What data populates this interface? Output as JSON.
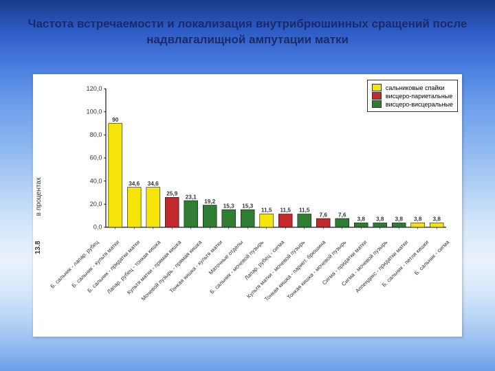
{
  "title": "Частота встречаемости и локализация внутрибрюшинных сращений после надвлагалищной ампутации матки",
  "chart": {
    "type": "bar",
    "ylabel": "в процентах",
    "side_code": "13.8",
    "ylim": [
      0,
      120
    ],
    "ytick_step": 20,
    "background_color": "#ffffff",
    "axis_color": "#000000",
    "grid_color": "#000000",
    "bar_border": "#000000",
    "label_fontsize": 9,
    "tick_fontsize": 10,
    "bar_width_ratio": 0.72,
    "colors": {
      "yellow": "#f4e409",
      "red": "#c3282d",
      "green": "#2e7d32"
    },
    "legend": [
      {
        "label": "сальниковые спайки",
        "color": "yellow"
      },
      {
        "label": "висцеро-париетальные",
        "color": "red"
      },
      {
        "label": "висцеро-висцеральные",
        "color": "green"
      }
    ],
    "bars": [
      {
        "label": "Б. сальник - лапар. рубец",
        "value": 90.0,
        "series": "yellow"
      },
      {
        "label": "Б. сальник - культя матки",
        "value": 34.6,
        "series": "yellow"
      },
      {
        "label": "Б. сальник - придатки матки",
        "value": 34.6,
        "series": "yellow"
      },
      {
        "label": "Лапар. рубец - тонкая кишка",
        "value": 25.9,
        "series": "red"
      },
      {
        "label": "Культя матки - прямая кишка",
        "value": 23.1,
        "series": "green"
      },
      {
        "label": "Мочевой пузырь - прямая кишка",
        "value": 19.2,
        "series": "green"
      },
      {
        "label": "Тонкая кишка - культя матки",
        "value": 15.3,
        "series": "green"
      },
      {
        "label": "Маточные отделы",
        "value": 15.3,
        "series": "green"
      },
      {
        "label": "Б. сальник - мочевой пузырь",
        "value": 11.5,
        "series": "yellow"
      },
      {
        "label": "Лапар. рубец - сигма",
        "value": 11.5,
        "series": "red"
      },
      {
        "label": "Культя матки - мочевой пузырь",
        "value": 11.5,
        "series": "green"
      },
      {
        "label": "Тонкая кишка - париет. брюшина",
        "value": 7.6,
        "series": "red"
      },
      {
        "label": "Тонкая кишка - мочевой пузырь",
        "value": 7.6,
        "series": "green"
      },
      {
        "label": "Сигма - придатки матки",
        "value": 3.8,
        "series": "green"
      },
      {
        "label": "Сигма - мочевой пузырь",
        "value": 3.8,
        "series": "green"
      },
      {
        "label": "Аппендикс - придатки матки",
        "value": 3.8,
        "series": "green"
      },
      {
        "label": "Б. сальник - петля кишки",
        "value": 3.8,
        "series": "yellow"
      },
      {
        "label": "Б. сальник - сигма",
        "value": 3.8,
        "series": "yellow"
      }
    ]
  }
}
